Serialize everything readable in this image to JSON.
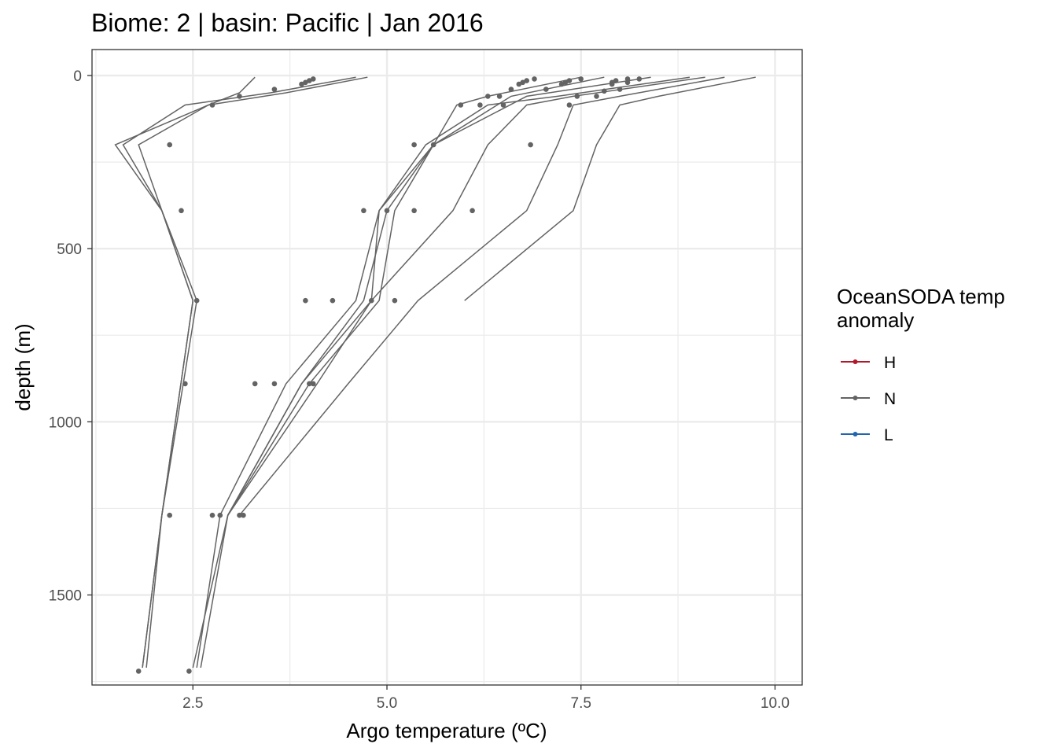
{
  "chart_data": {
    "type": "line",
    "title": "Biome: 2 | basin: Pacific  | Jan 2016",
    "xlabel": "Argo temperature (ºC)",
    "ylabel": "depth (m)",
    "xlim": [
      1.2,
      10.35
    ],
    "ylim": [
      1760,
      -75
    ],
    "y_reversed": true,
    "x_ticks": [
      2.5,
      5.0,
      7.5,
      10.0
    ],
    "x_tick_labels": [
      "2.5",
      "5.0",
      "7.5",
      "10.0"
    ],
    "y_ticks": [
      0,
      500,
      1000,
      1500
    ],
    "y_tick_labels": [
      "0",
      "500",
      "1000",
      "1500"
    ],
    "x_minor": [
      1.25,
      3.75,
      6.25,
      8.75
    ],
    "y_minor": [
      250,
      750,
      1250,
      1750
    ],
    "grid": true,
    "legend": {
      "title_lines": [
        "OceanSODA temp",
        "anomaly"
      ],
      "placement": "right",
      "entries": [
        {
          "label": "H",
          "color": "#b2182b"
        },
        {
          "label": "N",
          "color": "#636363"
        },
        {
          "label": "L",
          "color": "#2166ac"
        }
      ]
    },
    "line_color": "#636363",
    "series": [
      {
        "values": [
          [
            3.3,
            5
          ],
          [
            3.1,
            50
          ],
          [
            2.7,
            85
          ],
          [
            1.8,
            200
          ],
          [
            2.1,
            390
          ],
          [
            2.5,
            650
          ],
          [
            2.1,
            1270
          ],
          [
            1.9,
            1710
          ]
        ]
      },
      {
        "values": [
          [
            4.6,
            5
          ],
          [
            3.5,
            50
          ],
          [
            2.4,
            85
          ],
          [
            1.6,
            200
          ],
          [
            2.1,
            390
          ],
          [
            2.5,
            650
          ],
          [
            2.1,
            1270
          ],
          [
            1.85,
            1710
          ]
        ]
      },
      {
        "values": [
          [
            4.75,
            5
          ],
          [
            3.7,
            50
          ],
          [
            2.7,
            85
          ],
          [
            1.5,
            200
          ],
          [
            2.1,
            390
          ],
          [
            2.55,
            650
          ],
          [
            2.1,
            1270
          ],
          [
            1.85,
            1710
          ]
        ]
      },
      {
        "values": [
          [
            7.5,
            5
          ],
          [
            6.3,
            60
          ],
          [
            5.9,
            85
          ],
          [
            5.6,
            200
          ],
          [
            4.9,
            390
          ],
          [
            4.6,
            650
          ],
          [
            3.7,
            890
          ],
          [
            2.85,
            1270
          ],
          [
            2.55,
            1710
          ]
        ]
      },
      {
        "values": [
          [
            7.8,
            5
          ],
          [
            6.6,
            60
          ],
          [
            5.6,
            200
          ],
          [
            5.1,
            390
          ],
          [
            4.9,
            650
          ],
          [
            4.0,
            890
          ],
          [
            2.95,
            1270
          ],
          [
            2.6,
            1710
          ]
        ]
      },
      {
        "values": [
          [
            8.4,
            5
          ],
          [
            6.8,
            60
          ],
          [
            5.6,
            200
          ],
          [
            5.0,
            390
          ],
          [
            4.7,
            650
          ],
          [
            3.9,
            890
          ],
          [
            2.95,
            1270
          ],
          [
            2.5,
            1710
          ]
        ]
      },
      {
        "values": [
          [
            8.9,
            5
          ],
          [
            7.2,
            60
          ],
          [
            6.3,
            85
          ],
          [
            5.5,
            200
          ],
          [
            4.9,
            390
          ],
          [
            4.8,
            650
          ],
          [
            3.9,
            890
          ],
          [
            2.95,
            1270
          ]
        ]
      },
      {
        "values": [
          [
            9.1,
            5
          ],
          [
            7.4,
            60
          ],
          [
            6.8,
            85
          ],
          [
            6.3,
            200
          ],
          [
            5.85,
            390
          ],
          [
            4.8,
            650
          ],
          [
            4.1,
            890
          ],
          [
            2.95,
            1270
          ]
        ]
      },
      {
        "values": [
          [
            9.35,
            5
          ],
          [
            8.0,
            60
          ],
          [
            7.4,
            85
          ],
          [
            7.2,
            200
          ],
          [
            6.8,
            390
          ],
          [
            5.4,
            650
          ],
          [
            4.5,
            890
          ],
          [
            3.1,
            1270
          ]
        ]
      },
      {
        "values": [
          [
            9.75,
            5
          ],
          [
            8.5,
            60
          ],
          [
            8.0,
            85
          ],
          [
            7.7,
            200
          ],
          [
            7.4,
            390
          ],
          [
            6.0,
            650
          ]
        ]
      }
    ],
    "points": [
      [
        4.05,
        10
      ],
      [
        4.0,
        15
      ],
      [
        3.95,
        20
      ],
      [
        3.9,
        25
      ],
      [
        3.55,
        40
      ],
      [
        3.1,
        60
      ],
      [
        2.75,
        85
      ],
      [
        2.2,
        200
      ],
      [
        2.35,
        390
      ],
      [
        2.55,
        650
      ],
      [
        2.4,
        890
      ],
      [
        2.2,
        1270
      ],
      [
        1.8,
        1720
      ],
      [
        2.45,
        1720
      ],
      [
        6.9,
        10
      ],
      [
        6.8,
        15
      ],
      [
        6.75,
        20
      ],
      [
        6.7,
        25
      ],
      [
        6.6,
        40
      ],
      [
        6.45,
        60
      ],
      [
        6.3,
        60
      ],
      [
        6.2,
        85
      ],
      [
        5.95,
        85
      ],
      [
        6.5,
        85
      ],
      [
        5.6,
        200
      ],
      [
        5.35,
        200
      ],
      [
        6.85,
        200
      ],
      [
        4.7,
        390
      ],
      [
        5.0,
        390
      ],
      [
        5.35,
        390
      ],
      [
        6.1,
        390
      ],
      [
        3.95,
        650
      ],
      [
        4.3,
        650
      ],
      [
        4.8,
        650
      ],
      [
        5.1,
        650
      ],
      [
        3.3,
        890
      ],
      [
        3.55,
        890
      ],
      [
        4.0,
        890
      ],
      [
        4.05,
        890
      ],
      [
        2.75,
        1270
      ],
      [
        2.85,
        1270
      ],
      [
        3.15,
        1270
      ],
      [
        3.1,
        1270
      ],
      [
        7.5,
        10
      ],
      [
        7.35,
        15
      ],
      [
        7.3,
        20
      ],
      [
        7.25,
        25
      ],
      [
        7.05,
        40
      ],
      [
        7.45,
        60
      ],
      [
        7.35,
        85
      ],
      [
        7.8,
        45
      ],
      [
        7.7,
        60
      ],
      [
        8.25,
        10
      ],
      [
        8.1,
        10
      ],
      [
        7.95,
        15
      ],
      [
        7.9,
        20
      ],
      [
        8.1,
        20
      ],
      [
        7.9,
        25
      ],
      [
        8.0,
        40
      ]
    ]
  }
}
